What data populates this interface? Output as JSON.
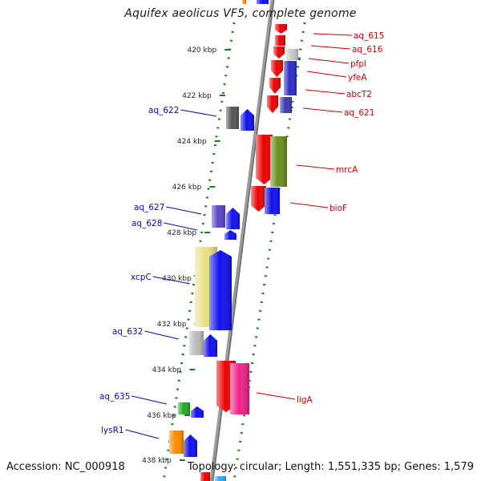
{
  "title": "Aquifex aeolicus VF5, complete genome",
  "footer": {
    "accession": "Accession: NC_000918",
    "topology": "Topology: circular; Length: 1,551,335 bp; Genes: 1,579"
  },
  "scale": {
    "unit": "kbp",
    "ticks": [
      "420 kbp",
      "422 kbp",
      "424 kbp",
      "426 kbp",
      "428 kbp",
      "430 kbp",
      "432 kbp",
      "434 kbp",
      "436 kbp",
      "438 kbp"
    ]
  },
  "colors": {
    "backbone": "#8c8c8c",
    "forward_strand_label": "#0a0aa8",
    "reverse_strand_label": "#cc0000",
    "dots": "#1f7a1f"
  },
  "genes": {
    "left": [
      {
        "label": "aq_622"
      },
      {
        "label": "aq_627"
      },
      {
        "label": "aq_628"
      },
      {
        "label": "xcpC"
      },
      {
        "label": "aq_632"
      },
      {
        "label": "aq_635"
      },
      {
        "label": "lysR1"
      }
    ],
    "right": [
      {
        "label": "aq_615"
      },
      {
        "label": "aq_616"
      },
      {
        "label": "pfpI"
      },
      {
        "label": "yfeA"
      },
      {
        "label": "abcT2"
      },
      {
        "label": "aq_621"
      },
      {
        "label": "mrcA"
      },
      {
        "label": "bioF"
      },
      {
        "label": "ligA"
      }
    ]
  }
}
